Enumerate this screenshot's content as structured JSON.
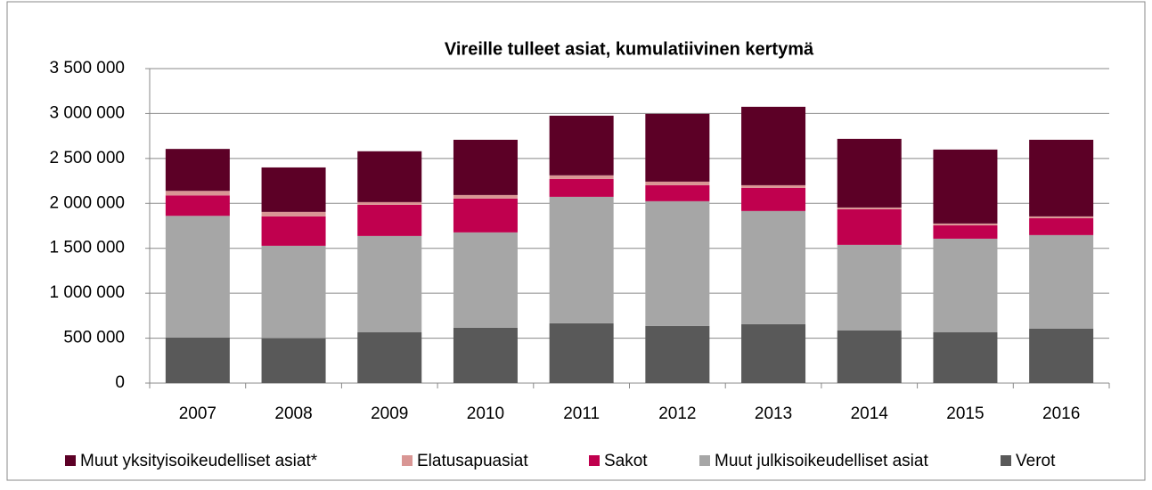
{
  "chart_data": {
    "type": "bar",
    "stacked": true,
    "title": "Vireille tulleet asiat, kumulatiivinen kertymä",
    "categories": [
      "2007",
      "2008",
      "2009",
      "2010",
      "2011",
      "2012",
      "2013",
      "2014",
      "2015",
      "2016"
    ],
    "series": [
      {
        "name": "Muut yksityisoikeudelliset asiat*",
        "color": "#5c0026",
        "values": [
          467000,
          495000,
          566000,
          615000,
          664000,
          754000,
          873000,
          764000,
          823000,
          853000
        ]
      },
      {
        "name": "Elatusapuasiat",
        "color": "#d99694",
        "values": [
          50000,
          50000,
          30000,
          39000,
          40000,
          40000,
          29000,
          19000,
          20000,
          20000
        ]
      },
      {
        "name": "Sakot",
        "color": "#c0004e",
        "values": [
          228000,
          327000,
          347000,
          377000,
          199000,
          178000,
          258000,
          397000,
          149000,
          188000
        ]
      },
      {
        "name": "Muut julkisoikeudelliset asiat",
        "color": "#a6a6a6",
        "values": [
          1355000,
          1028000,
          1072000,
          1062000,
          1408000,
          1389000,
          1260000,
          953000,
          1042000,
          1042000
        ]
      },
      {
        "name": "Verot",
        "color": "#595959",
        "values": [
          506000,
          500000,
          565000,
          615000,
          665000,
          635000,
          655000,
          585000,
          565000,
          605000
        ]
      }
    ],
    "ylim": [
      0,
      3500000
    ],
    "yticks": [
      0,
      {
        "value": 500000,
        "label": "500 000"
      },
      {
        "value": 1000000,
        "label": "1 000 000"
      },
      {
        "value": 1500000,
        "label": "1 500 000"
      },
      {
        "value": 2000000,
        "label": "2 000 000"
      },
      {
        "value": 2500000,
        "label": "2 500 000"
      },
      {
        "value": 3000000,
        "label": "3 000 000"
      },
      {
        "value": 3500000,
        "label": "3 500 000"
      }
    ],
    "grid": true,
    "legend": "bottom"
  }
}
